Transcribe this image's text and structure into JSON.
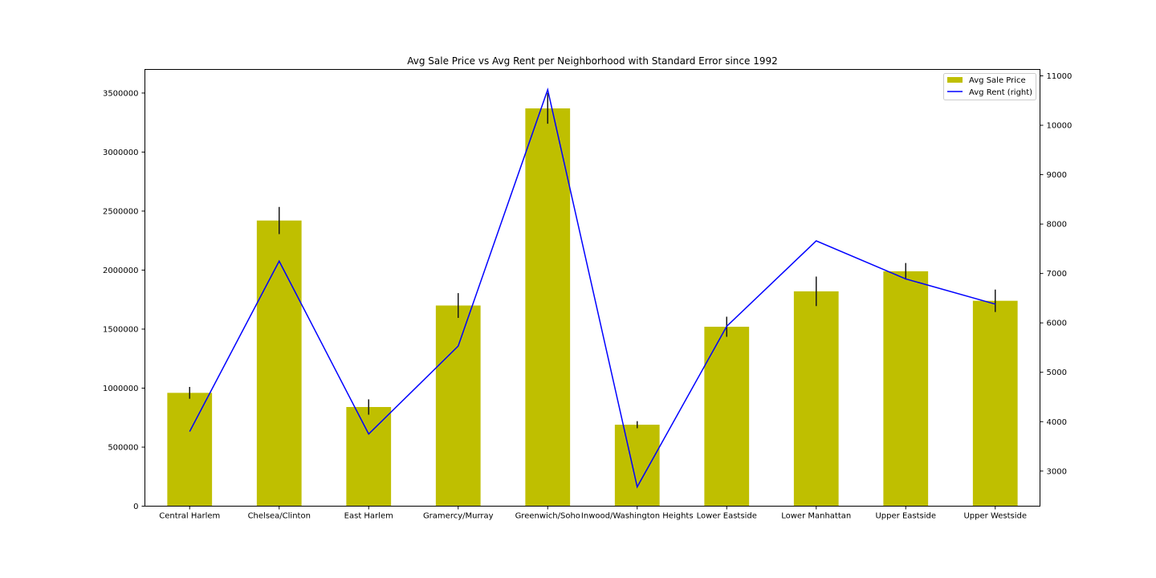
{
  "chart_data": {
    "type": "bar",
    "title": "Avg Sale Price vs Avg Rent per Neighborhood with Standard Error since 1992",
    "categories": [
      "Central Harlem",
      "Chelsea/Clinton",
      "East Harlem",
      "Gramercy/Murray",
      "Greenwich/Soho",
      "Inwood/Washington Heights",
      "Lower Eastside",
      "Lower Manhattan",
      "Upper Eastside",
      "Upper Westside"
    ],
    "series": [
      {
        "name": "Avg Sale Price",
        "type": "bar",
        "axis": "left",
        "color": "#bfbf00",
        "values": [
          960000,
          2420000,
          840000,
          1700000,
          3370000,
          690000,
          1520000,
          1820000,
          1990000,
          1740000
        ],
        "error": [
          50000,
          115000,
          65000,
          105000,
          130000,
          30000,
          85000,
          125000,
          70000,
          95000
        ]
      },
      {
        "name": "Avg Rent (right)",
        "type": "line",
        "axis": "right",
        "color": "#0000ff",
        "values": [
          3800,
          7250,
          3750,
          5530,
          10720,
          2680,
          5930,
          7660,
          6890,
          6380
        ]
      }
    ],
    "left_axis": {
      "ylim": [
        0,
        3700000
      ],
      "ticks": [
        "0",
        "500000",
        "1000000",
        "1500000",
        "2000000",
        "2500000",
        "3000000",
        "3500000"
      ]
    },
    "right_axis": {
      "ylim": [
        2290,
        11130
      ],
      "ticks": [
        "3000",
        "4000",
        "5000",
        "6000",
        "7000",
        "8000",
        "9000",
        "10000",
        "11000"
      ]
    },
    "legend_placement": "top-right",
    "grid": false
  }
}
